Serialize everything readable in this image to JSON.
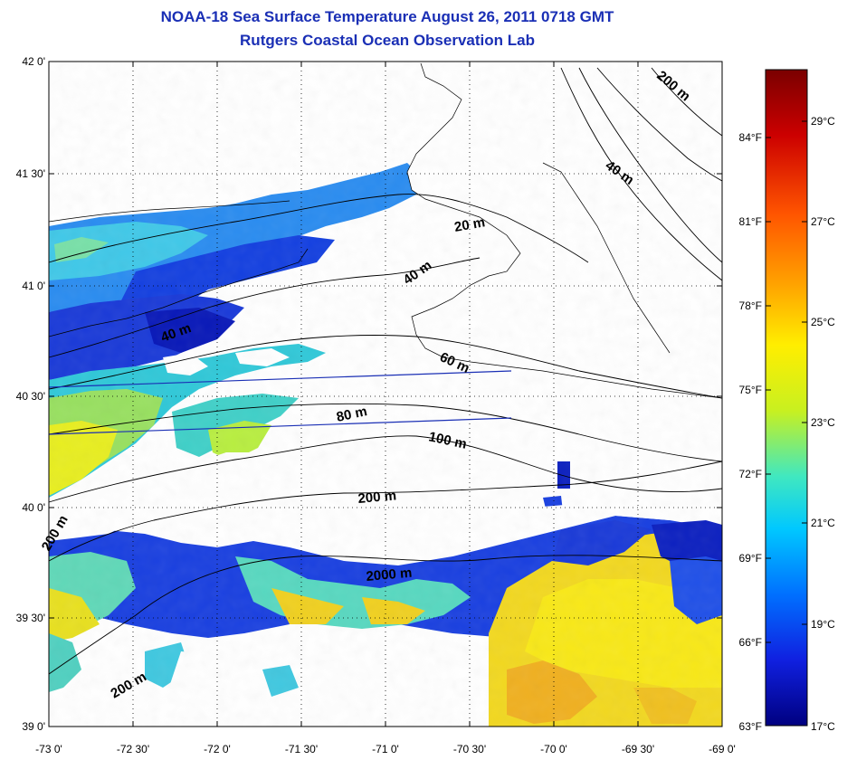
{
  "title": "NOAA-18 Sea Surface Temperature August 26, 2011 0718 GMT",
  "subtitle": "Rutgers Coastal Ocean Observation Lab",
  "lat_ticks": [
    "42 0'",
    "41 30'",
    "41 0'",
    "40 30'",
    "40 0'",
    "39 30'",
    "39 0'"
  ],
  "lon_ticks": [
    "-73 0'",
    "-72 30'",
    "-72 0'",
    "-71 30'",
    "-71 0'",
    "-70 30'",
    "-70 0'",
    "-69 30'",
    "-69 0'"
  ],
  "contour_labels": [
    "20 m",
    "40 m",
    "40 m",
    "60 m",
    "80 m",
    "100 m",
    "200 m",
    "200 m",
    "200 m",
    "2000 m",
    "200 m",
    "40 m"
  ],
  "colorbar": {
    "celsius": [
      "29°C",
      "27°C",
      "25°C",
      "23°C",
      "21°C",
      "19°C",
      "17°C"
    ],
    "fahrenheit": [
      "84°F",
      "81°F",
      "78°F",
      "75°F",
      "72°F",
      "69°F",
      "66°F",
      "63°F"
    ],
    "stops": [
      "#7a0000",
      "#cc0000",
      "#ff5500",
      "#ffa500",
      "#ffee00",
      "#c8f020",
      "#40e8c0",
      "#00c8ff",
      "#0070ff",
      "#1020e0",
      "#000080"
    ]
  },
  "colors": {
    "title": "#1a2fb5",
    "land": "#ffffff",
    "cloud": "#ffffff"
  }
}
